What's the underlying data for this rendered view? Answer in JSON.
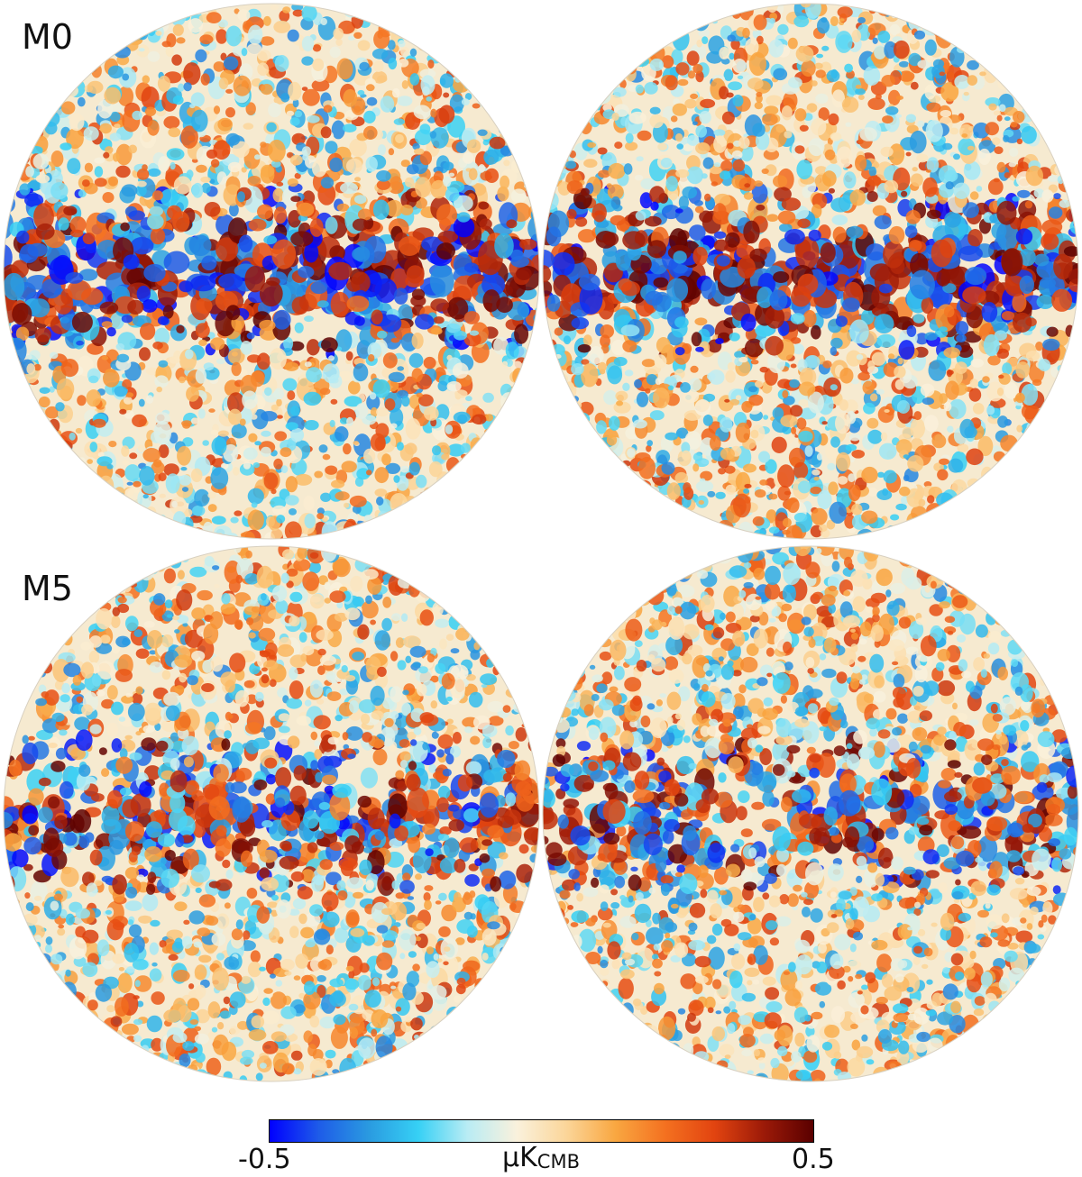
{
  "panels": [
    {
      "label": "M0"
    },
    {
      "label": "M5"
    }
  ],
  "colorbar": {
    "min_label": "-0.5",
    "max_label": "0.5",
    "unit_prefix": "μK",
    "unit_sub": "CMB",
    "stops": [
      "#0000ff",
      "#1e5ce8",
      "#2a9ae0",
      "#36d0f5",
      "#b9ecf4",
      "#faf1dc",
      "#fbd69a",
      "#f9a741",
      "#f47120",
      "#e24410",
      "#9c1a08",
      "#5a0000"
    ]
  },
  "maps": [
    {
      "panel": "M0",
      "side": "left",
      "band": "strong"
    },
    {
      "panel": "M0",
      "side": "right",
      "band": "strong"
    },
    {
      "panel": "M5",
      "side": "left",
      "band": "weak"
    },
    {
      "panel": "M5",
      "side": "right",
      "band": "weak"
    }
  ]
}
